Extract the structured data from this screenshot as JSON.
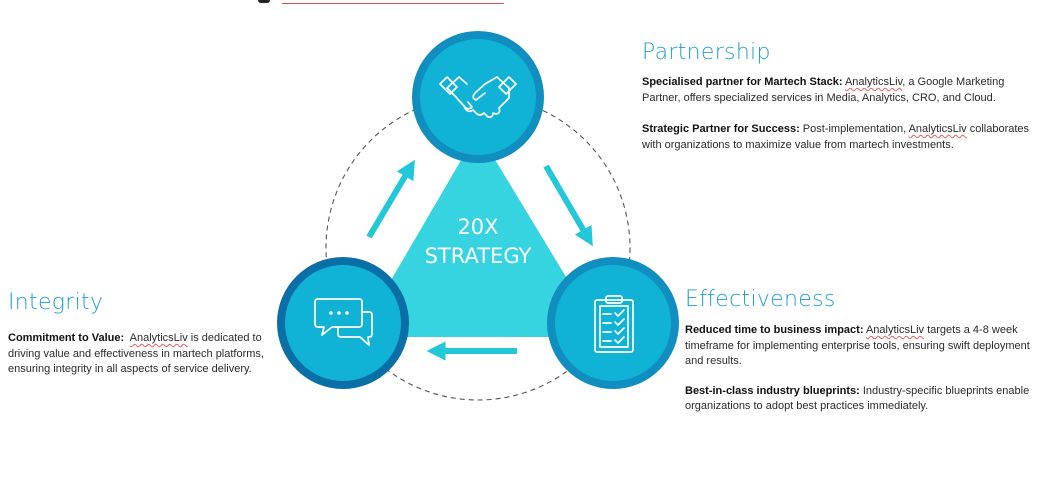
{
  "center": {
    "line1": "20X",
    "line2": "STRATEGY"
  },
  "icons": {
    "top": "handshake-icon",
    "left": "chat-bubbles-icon",
    "right": "clipboard-checklist-icon"
  },
  "colors": {
    "accent": "#1e9fd0",
    "triangle": "#36d3e0",
    "circle": "#10b3d6",
    "circle_dark": "#0a6fa6",
    "arrow": "#22c7d8"
  },
  "partnership": {
    "title": "Partnership",
    "item1_bold": "Specialised partner for Martech Stack:",
    "item1_brand": "AnalyticsLiv",
    "item1_text": ", a Google Marketing Partner, offers specialized services in Media, Analytics, CRO, and Cloud.",
    "item2_bold": "Strategic Partner for Success:",
    "item2_pre": "Post-implementation,",
    "item2_brand": "AnalyticsLiv",
    "item2_text": "collaborates with organizations to maximize value from martech investments."
  },
  "effectiveness": {
    "title": "Effectiveness",
    "item1_bold": "Reduced time to business impact:",
    "item1_brand": "AnalyticsLiv",
    "item1_text": "targets a 4-8 week timeframe for implementing enterprise tools, ensuring swift deployment and results.",
    "item2_bold": "Best-in-class industry blueprints:",
    "item2_text": "Industry-specific blueprints enable organizations to adopt best practices immediately."
  },
  "integrity": {
    "title": "Integrity",
    "item1_bold": "Commitment to Value:",
    "item1_brand": "AnalyticsLiv",
    "item1_text": "is dedicated to driving value and effectiveness in martech platforms, ensuring integrity in all aspects of service delivery."
  }
}
